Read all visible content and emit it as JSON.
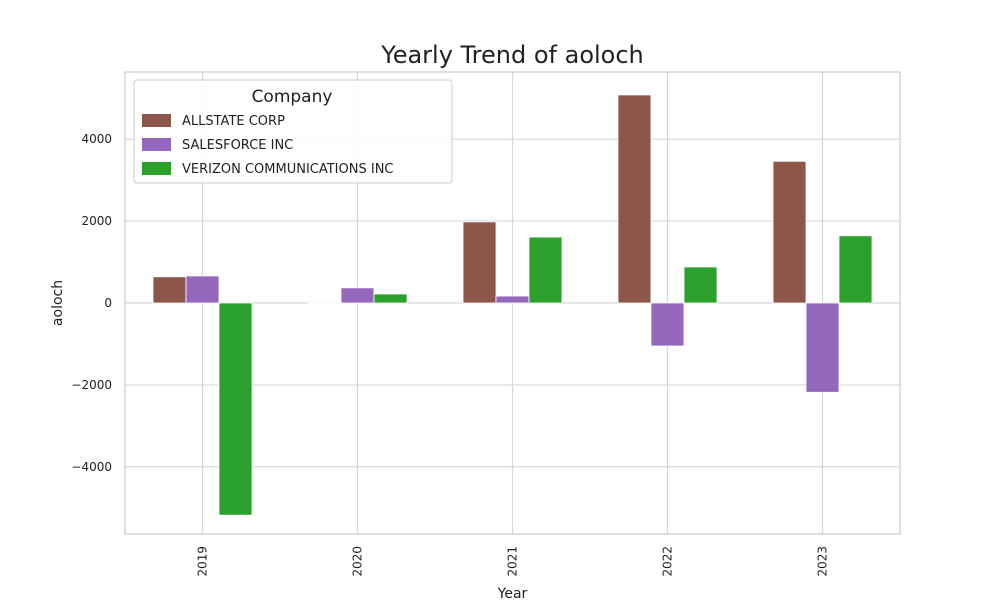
{
  "chart_data": {
    "type": "bar",
    "title": "Yearly Trend of aoloch",
    "xlabel": "Year",
    "ylabel": "aoloch",
    "categories": [
      "2019",
      "2020",
      "2021",
      "2022",
      "2023"
    ],
    "series": [
      {
        "name": "ALLSTATE CORP",
        "color": "#8c564b",
        "values": [
          640,
          0,
          1980,
          5080,
          3460
        ]
      },
      {
        "name": "SALESFORCE INC",
        "color": "#9467bd",
        "values": [
          660,
          370,
          170,
          -1050,
          -2180
        ]
      },
      {
        "name": "VERIZON COMMUNICATIONS INC",
        "color": "#2ca02c",
        "values": [
          -5180,
          220,
          1610,
          880,
          1640
        ]
      }
    ],
    "ylim": [
      -5640,
      5640
    ],
    "yticks": [
      -4000,
      -2000,
      0,
      2000,
      4000
    ],
    "ytick_labels": [
      "−4000",
      "−2000",
      "0",
      "2000",
      "4000"
    ],
    "grid": true,
    "legend": {
      "title": "Company",
      "placement": "top-left"
    }
  }
}
